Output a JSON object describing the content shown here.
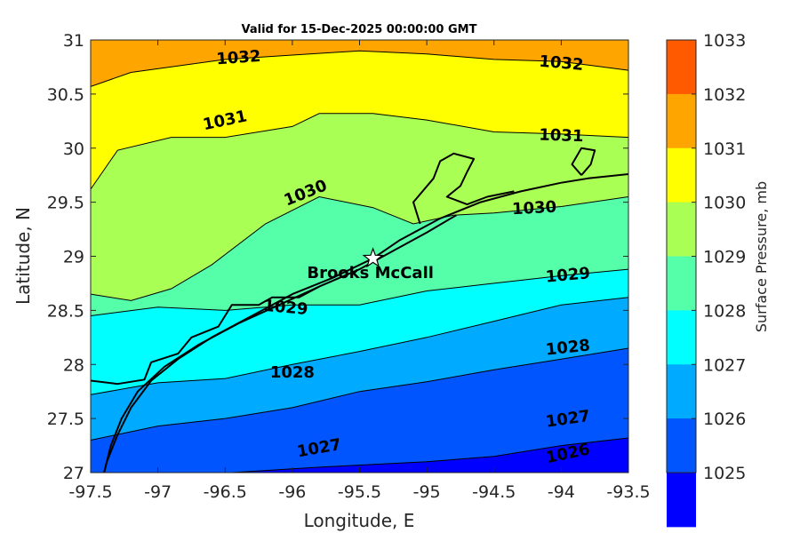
{
  "title": "Valid for 15-Dec-2025 00:00:00 GMT",
  "xlabel": "Longitude, E",
  "ylabel": "Latitude, N",
  "colorbar_label": "Surface Pressure, mb",
  "x_ticks": [
    "-97.5",
    "-97",
    "-96.5",
    "-96",
    "-95.5",
    "-95",
    "-94.5",
    "-94",
    "-93.5"
  ],
  "y_ticks": [
    "31",
    "30.5",
    "30",
    "29.5",
    "29",
    "28.5",
    "28",
    "27.5",
    "27"
  ],
  "colorbar_ticks": [
    "1033",
    "1032",
    "1031",
    "1030",
    "1029",
    "1028",
    "1027",
    "1026",
    "1025"
  ],
  "colorbar_colors": [
    "#ff5a00",
    "#ffa500",
    "#ffff00",
    "#aaff55",
    "#55ffaa",
    "#00ffff",
    "#00aaff",
    "#0055ff",
    "#0000ff"
  ],
  "station": {
    "name": "Brooks McCall",
    "lon": -95.4,
    "lat": 28.98
  },
  "chart_data": {
    "type": "contour",
    "variable": "Surface Pressure, mb",
    "xlim": [
      -97.5,
      -93.5
    ],
    "ylim": [
      27,
      31
    ],
    "levels": [
      1025,
      1026,
      1027,
      1028,
      1029,
      1030,
      1031,
      1032,
      1033
    ],
    "contours": [
      {
        "level": "1026",
        "points": [
          [
            -96.45,
            27
          ],
          [
            -95.8,
            27.05
          ],
          [
            -95,
            27.1
          ],
          [
            -94.5,
            27.15
          ],
          [
            -94,
            27.25
          ],
          [
            -93.5,
            27.32
          ]
        ]
      },
      {
        "level": "1027",
        "points": [
          [
            -97.5,
            27.3
          ],
          [
            -97,
            27.43
          ],
          [
            -96.5,
            27.5
          ],
          [
            -96,
            27.6
          ],
          [
            -95.5,
            27.75
          ],
          [
            -95,
            27.84
          ],
          [
            -94.5,
            27.95
          ],
          [
            -94,
            28.05
          ],
          [
            -93.5,
            28.15
          ]
        ]
      },
      {
        "level": "1028",
        "points": [
          [
            -97.5,
            27.72
          ],
          [
            -97,
            27.83
          ],
          [
            -96.5,
            27.87
          ],
          [
            -96,
            28
          ],
          [
            -95.5,
            28.12
          ],
          [
            -95,
            28.25
          ],
          [
            -94.5,
            28.4
          ],
          [
            -94,
            28.55
          ],
          [
            -93.5,
            28.62
          ]
        ]
      },
      {
        "level": "1029",
        "points": [
          [
            -97.5,
            28.45
          ],
          [
            -97,
            28.53
          ],
          [
            -96.5,
            28.5
          ],
          [
            -96,
            28.55
          ],
          [
            -95.5,
            28.55
          ],
          [
            -95,
            28.68
          ],
          [
            -94.5,
            28.75
          ],
          [
            -94,
            28.82
          ],
          [
            -93.5,
            28.88
          ]
        ]
      },
      {
        "level": "1030",
        "points": [
          [
            -97.5,
            28.65
          ],
          [
            -97.2,
            28.59
          ],
          [
            -96.9,
            28.7
          ],
          [
            -96.6,
            28.92
          ],
          [
            -96.2,
            29.3
          ],
          [
            -95.8,
            29.55
          ],
          [
            -95.4,
            29.45
          ],
          [
            -95.1,
            29.3
          ],
          [
            -94.8,
            29.38
          ],
          [
            -94.5,
            29.4
          ],
          [
            -94,
            29.46
          ],
          [
            -93.5,
            29.55
          ]
        ]
      },
      {
        "level": "1031",
        "points": [
          [
            -97.5,
            29.62
          ],
          [
            -97.3,
            29.98
          ],
          [
            -96.9,
            30.1
          ],
          [
            -96.5,
            30.1
          ],
          [
            -96,
            30.2
          ],
          [
            -95.8,
            30.32
          ],
          [
            -95.4,
            30.32
          ],
          [
            -95,
            30.26
          ],
          [
            -94.5,
            30.15
          ],
          [
            -94,
            30.13
          ],
          [
            -93.5,
            30.1
          ]
        ]
      },
      {
        "level": "1032",
        "points": [
          [
            -97.5,
            30.57
          ],
          [
            -97.2,
            30.7
          ],
          [
            -96.5,
            30.82
          ],
          [
            -96,
            30.86
          ],
          [
            -95.5,
            30.9
          ],
          [
            -95,
            30.87
          ],
          [
            -94.5,
            30.82
          ],
          [
            -94,
            30.8
          ],
          [
            -93.5,
            30.72
          ]
        ]
      }
    ],
    "contour_labels": [
      {
        "text": "1032",
        "lon": -96.4,
        "lat": 30.83,
        "angle": -4
      },
      {
        "text": "1032",
        "lon": -94.0,
        "lat": 30.78,
        "angle": 5
      },
      {
        "text": "1031",
        "lon": -96.5,
        "lat": 30.25,
        "angle": -12
      },
      {
        "text": "1031",
        "lon": -94.0,
        "lat": 30.11,
        "angle": 2
      },
      {
        "text": "1030",
        "lon": -95.9,
        "lat": 29.58,
        "angle": -22
      },
      {
        "text": "1030",
        "lon": -94.2,
        "lat": 29.44,
        "angle": -3
      },
      {
        "text": "1029",
        "lon": -96.05,
        "lat": 28.52,
        "angle": 5
      },
      {
        "text": "1029",
        "lon": -93.95,
        "lat": 28.82,
        "angle": -5
      },
      {
        "text": "1028",
        "lon": -96.0,
        "lat": 27.92,
        "angle": 0
      },
      {
        "text": "1028",
        "lon": -93.95,
        "lat": 28.15,
        "angle": -6
      },
      {
        "text": "1027",
        "lon": -95.8,
        "lat": 27.22,
        "angle": -10
      },
      {
        "text": "1027",
        "lon": -93.95,
        "lat": 27.49,
        "angle": -8
      },
      {
        "text": "1026",
        "lon": -93.95,
        "lat": 27.17,
        "angle": -12
      }
    ],
    "coastline": [
      [
        [
          -93.5,
          29.76
        ],
        [
          -93.8,
          29.72
        ],
        [
          -94.0,
          29.68
        ],
        [
          -94.3,
          29.6
        ],
        [
          -94.6,
          29.5
        ],
        [
          -94.9,
          29.35
        ],
        [
          -95.2,
          29.15
        ],
        [
          -95.4,
          28.98
        ],
        [
          -95.7,
          28.8
        ],
        [
          -96.0,
          28.65
        ],
        [
          -96.3,
          28.45
        ],
        [
          -96.6,
          28.25
        ],
        [
          -96.85,
          28.05
        ],
        [
          -97.05,
          27.85
        ],
        [
          -97.2,
          27.6
        ],
        [
          -97.3,
          27.35
        ],
        [
          -97.38,
          27.1
        ],
        [
          -97.4,
          27.0
        ]
      ],
      [
        [
          -94.78,
          29.38
        ],
        [
          -95.0,
          29.22
        ],
        [
          -95.25,
          29.05
        ],
        [
          -95.5,
          28.88
        ],
        [
          -95.8,
          28.72
        ],
        [
          -96.1,
          28.55
        ],
        [
          -96.4,
          28.38
        ],
        [
          -96.7,
          28.18
        ],
        [
          -96.95,
          27.98
        ],
        [
          -97.15,
          27.75
        ],
        [
          -97.27,
          27.5
        ],
        [
          -97.35,
          27.25
        ],
        [
          -97.4,
          27.0
        ]
      ],
      [
        [
          -97.5,
          27.85
        ],
        [
          -97.3,
          27.82
        ],
        [
          -97.1,
          27.86
        ],
        [
          -97.05,
          28.02
        ],
        [
          -96.85,
          28.1
        ],
        [
          -96.75,
          28.25
        ],
        [
          -96.55,
          28.35
        ],
        [
          -96.45,
          28.55
        ],
        [
          -96.25,
          28.55
        ],
        [
          -96.15,
          28.62
        ],
        [
          -95.95,
          28.62
        ],
        [
          -95.8,
          28.72
        ]
      ],
      [
        [
          -95.05,
          29.3
        ],
        [
          -95.1,
          29.5
        ],
        [
          -94.95,
          29.72
        ],
        [
          -94.9,
          29.88
        ],
        [
          -94.8,
          29.95
        ],
        [
          -94.65,
          29.9
        ],
        [
          -94.7,
          29.78
        ],
        [
          -94.75,
          29.65
        ],
        [
          -94.85,
          29.55
        ],
        [
          -94.7,
          29.48
        ],
        [
          -94.55,
          29.55
        ],
        [
          -94.35,
          29.6
        ]
      ],
      [
        [
          -93.85,
          29.75
        ],
        [
          -93.92,
          29.85
        ],
        [
          -93.85,
          30.0
        ],
        [
          -93.75,
          29.98
        ],
        [
          -93.78,
          29.85
        ],
        [
          -93.85,
          29.75
        ]
      ]
    ]
  }
}
